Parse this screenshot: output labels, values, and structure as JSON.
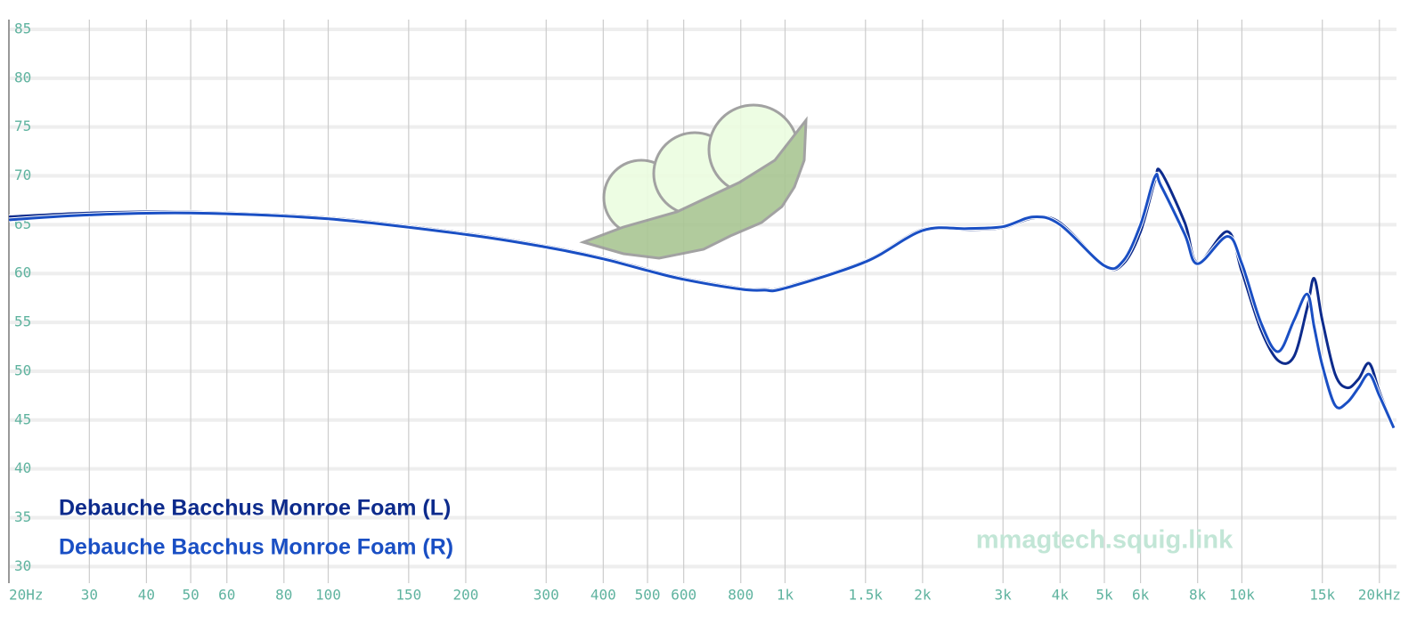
{
  "chart_data": {
    "type": "line",
    "x_scale": "log",
    "grid": true,
    "xlim": [
      20,
      21800
    ],
    "ylim": [
      28.3,
      86
    ],
    "xticks": [
      {
        "value": 20,
        "label": "20Hz"
      },
      30,
      40,
      50,
      60,
      80,
      100,
      150,
      200,
      300,
      400,
      500,
      600,
      800,
      {
        "value": 1000,
        "label": "1k"
      },
      {
        "value": 1500,
        "label": "1.5k"
      },
      {
        "value": 2000,
        "label": "2k"
      },
      {
        "value": 3000,
        "label": "3k"
      },
      {
        "value": 4000,
        "label": "4k"
      },
      {
        "value": 5000,
        "label": "5k"
      },
      {
        "value": 6000,
        "label": "6k"
      },
      {
        "value": 8000,
        "label": "8k"
      },
      {
        "value": 10000,
        "label": "10k"
      },
      {
        "value": 15000,
        "label": "15k"
      },
      {
        "value": 20000,
        "label": "20kHz"
      }
    ],
    "yticks": [
      30,
      35,
      40,
      45,
      50,
      55,
      60,
      65,
      70,
      75,
      80,
      85
    ],
    "x": [
      20,
      30,
      50,
      100,
      200,
      300,
      400,
      500,
      600,
      800,
      900,
      1000,
      1500,
      2000,
      2500,
      3000,
      3500,
      4000,
      5000,
      5500,
      6000,
      6450,
      6650,
      7500,
      8000,
      9300,
      10000,
      11000,
      12000,
      13000,
      13900,
      14400,
      15000,
      16000,
      17000,
      18000,
      19000,
      20000,
      21500
    ],
    "series": [
      {
        "name": "Debauche Bacchus Monroe Foam (L)",
        "color": "#0d2b8c",
        "values": [
          65.8,
          66.2,
          66.3,
          65.7,
          64.1,
          62.8,
          61.6,
          60.4,
          59.5,
          58.5,
          58.4,
          58.6,
          61.3,
          64.5,
          64.5,
          64.7,
          65.7,
          65.2,
          60.8,
          61.0,
          64.3,
          69.5,
          70.4,
          65.2,
          61.1,
          64.3,
          60.2,
          54.3,
          51.1,
          51.5,
          56.5,
          59.5,
          55.2,
          49.7,
          48.3,
          49.2,
          50.8,
          47.9,
          44.2
        ]
      },
      {
        "name": "Debauche Bacchus Monroe Foam (R)",
        "color": "#1a4fc4",
        "values": [
          65.5,
          66.0,
          66.2,
          65.6,
          64.0,
          62.7,
          61.5,
          60.3,
          59.4,
          58.4,
          58.3,
          58.5,
          61.2,
          64.4,
          64.6,
          64.8,
          65.8,
          65.0,
          60.8,
          61.3,
          65.0,
          69.9,
          69.0,
          64.0,
          61.0,
          63.8,
          61.0,
          55.0,
          52.0,
          55.2,
          57.9,
          54.5,
          50.6,
          46.5,
          46.8,
          48.3,
          49.7,
          47.5,
          44.2
        ]
      }
    ],
    "watermark": "mmagtech.squig.link"
  }
}
